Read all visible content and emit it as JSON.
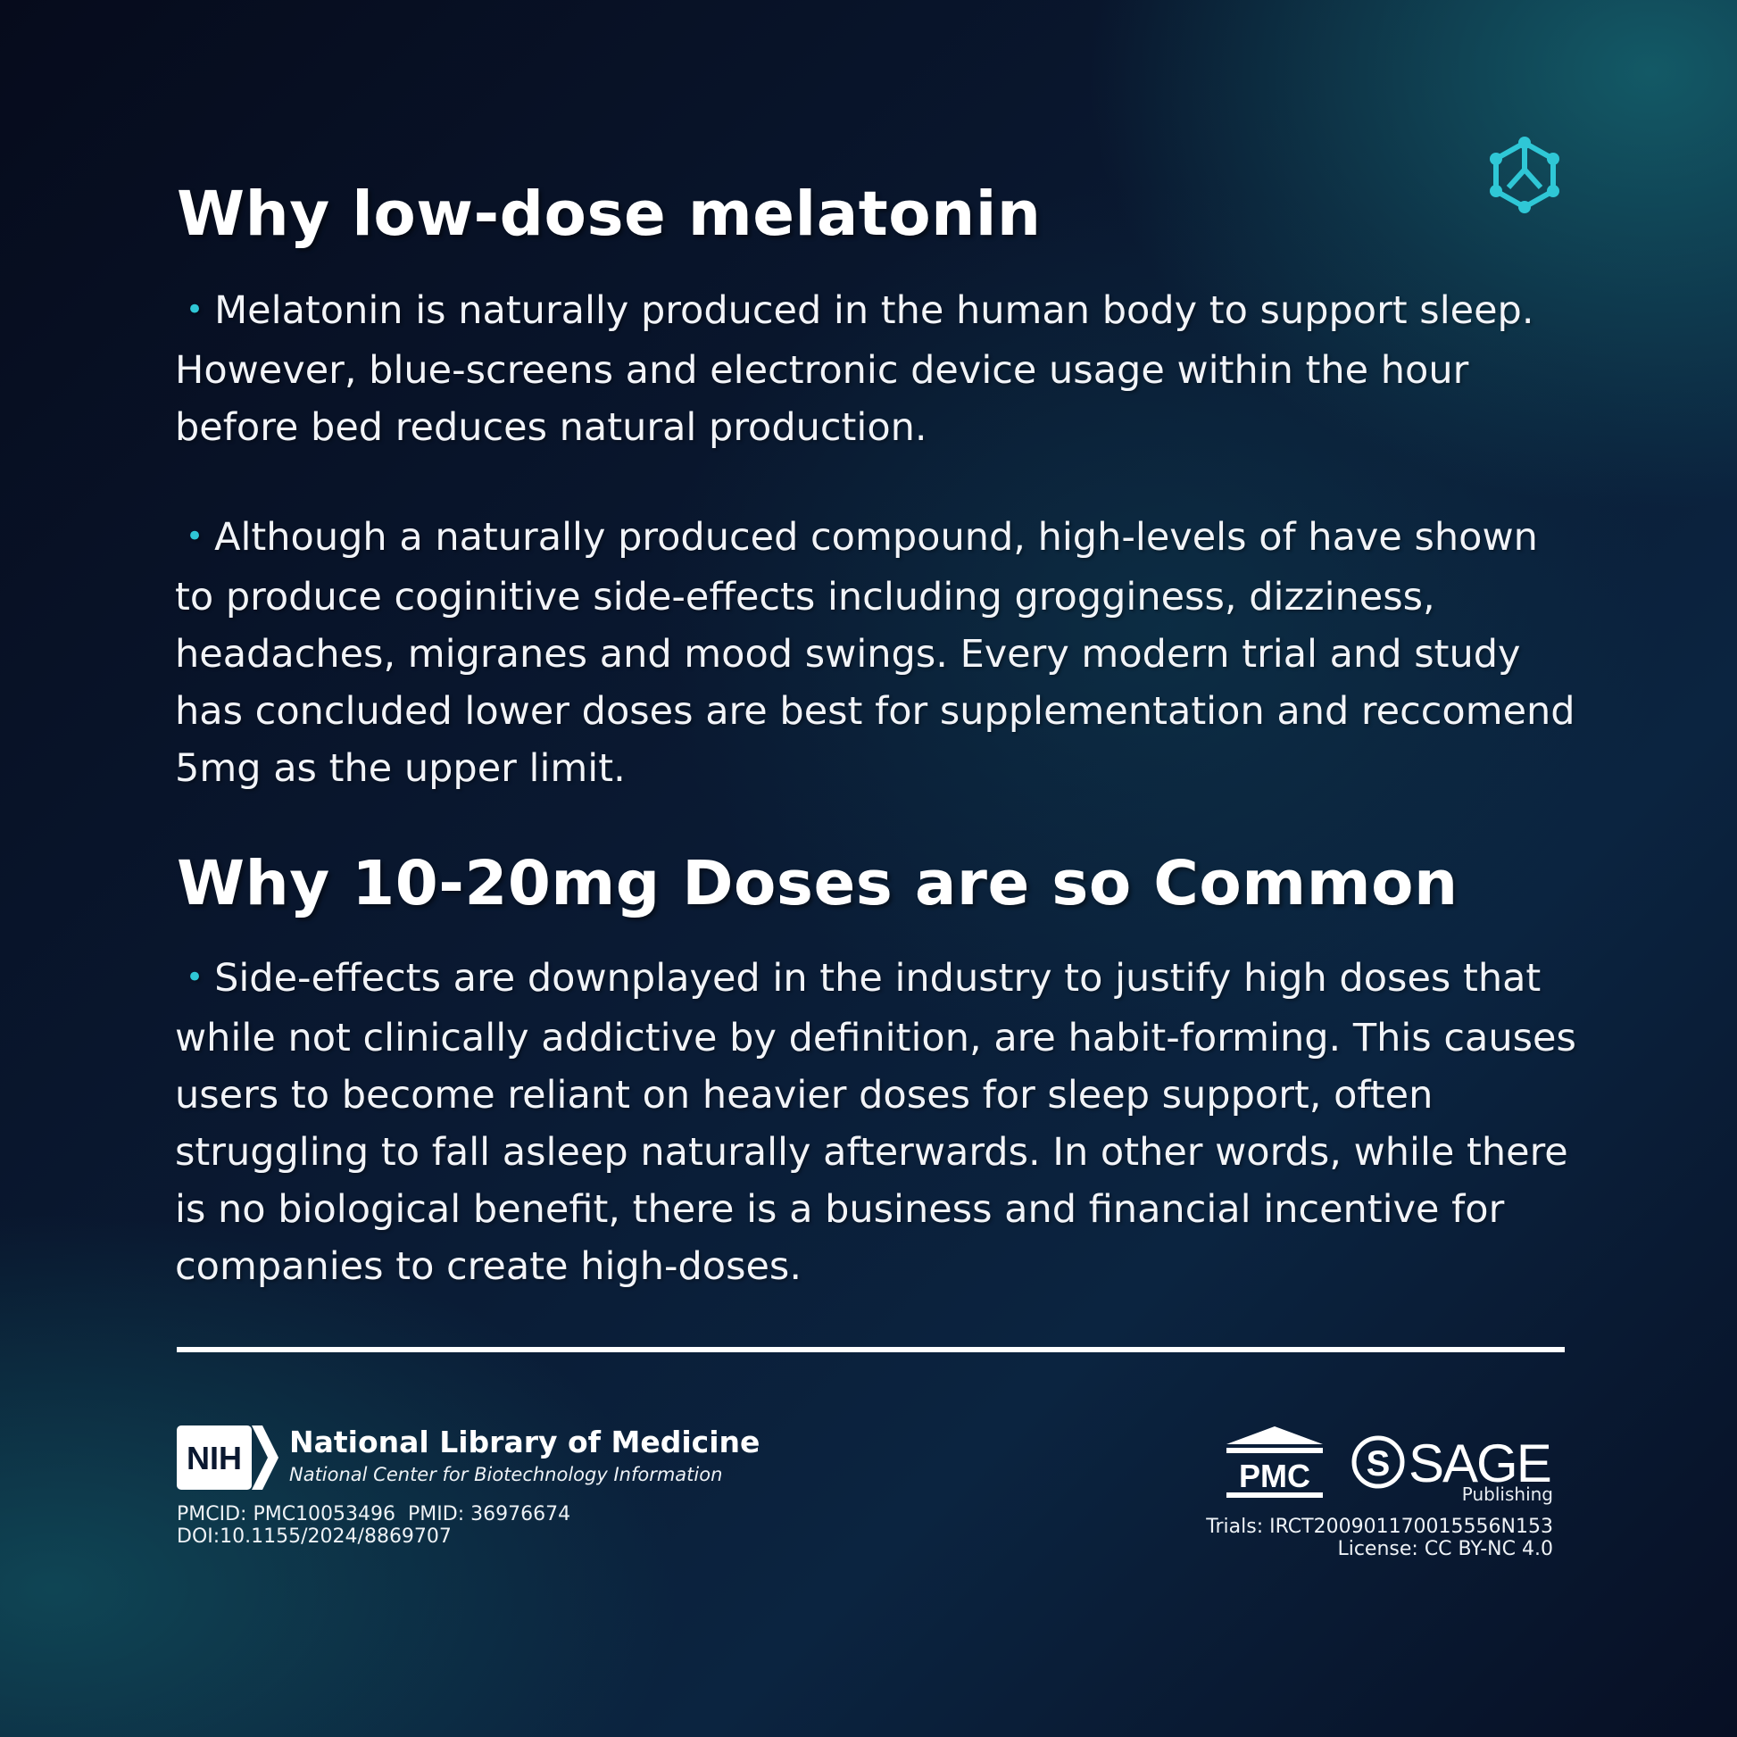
{
  "brand": {
    "accent_color": "#2fc7d6",
    "icon": "molecule-hexagon-icon"
  },
  "section1": {
    "title": "Why low-dose melatonin",
    "bullet": "•",
    "paragraphs": [
      "Melatonin is naturally produced in the human body to support sleep. However, blue-screens and electronic device usage within the hour before bed reduces natural production.",
      "Although a naturally produced compound, high-levels of have shown to produce coginitive side-effects including grogginess, dizziness, headaches, migranes and mood swings. Every modern trial and study has concluded lower doses are best for supplementation and reccomend 5mg as the upper limit."
    ]
  },
  "section2": {
    "title": "Why 10-20mg Doses are so Common",
    "paragraphs": [
      "Side-effects are downplayed in the industry to justify high doses that while not clinically addictive by definition, are habit-forming. This causes users to become reliant on heavier doses for sleep support, often struggling to fall asleep naturally afterwards. In other words, while there is no biological benefit, there is a business and financial incentive for companies to create high-doses."
    ]
  },
  "footer": {
    "nih_mark": "NIH",
    "nih_title": "National Library of Medicine",
    "nih_subtitle": "National Center for Biotechnology Information",
    "pmcid": "PMCID: PMC10053496",
    "pmid": "PMID: 36976674",
    "doi": "DOI:10.1155/2024/8869707",
    "pmc_label": "PMC",
    "sage_label": "SAGE",
    "sage_sub": "Publishing",
    "trials": "Trials: IRCT200901170015556N153",
    "license": "License: CC BY-NC 4.0"
  }
}
